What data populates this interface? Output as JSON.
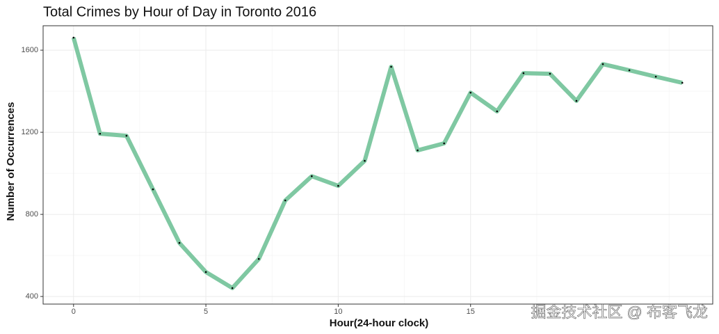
{
  "chart_data": {
    "type": "line",
    "title": "Total Crimes by Hour of Day in Toronto 2016",
    "x_label": "Hour(24-hour clock)",
    "y_label": "Number of Occurrences",
    "x": [
      0,
      1,
      2,
      3,
      4,
      5,
      6,
      7,
      8,
      9,
      10,
      11,
      12,
      13,
      14,
      15,
      16,
      17,
      18,
      19,
      20,
      21,
      22,
      23
    ],
    "series": [
      {
        "color": "#7fc8a2",
        "values": [
          1661,
          1193,
          1183,
          922,
          661,
          519,
          441,
          583,
          868,
          986,
          939,
          1061,
          1519,
          1112,
          1146,
          1393,
          1302,
          1488,
          1485,
          1353,
          1532,
          1502,
          1471,
          1441
        ]
      }
    ],
    "xlim": [
      -1.15,
      24.15
    ],
    "xticks": [
      0,
      5,
      10,
      15
    ],
    "ylim": [
      363,
      1719
    ],
    "yticks": [
      400,
      800,
      1200,
      1600
    ],
    "grid": true,
    "watermark": "掘金技术社区 @ 布客飞龙"
  }
}
